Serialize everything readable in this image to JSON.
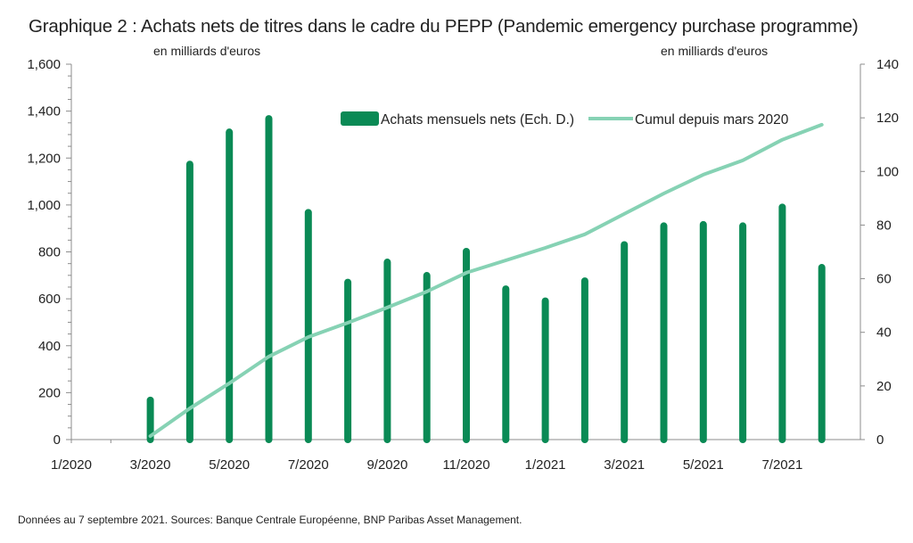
{
  "chart_data": {
    "type": "bar+line",
    "title": "Graphique 2 : Achats nets de titres dans le cadre du PEPP (Pandemic emergency purchase programme)",
    "ylabel_left": "en milliards d'euros",
    "ylabel_right": "en milliards d'euros",
    "x_months": [
      "1/2020",
      "2/2020",
      "3/2020",
      "4/2020",
      "5/2020",
      "6/2020",
      "7/2020",
      "8/2020",
      "9/2020",
      "10/2020",
      "11/2020",
      "12/2020",
      "1/2021",
      "2/2021",
      "3/2021",
      "4/2021",
      "5/2021",
      "6/2021",
      "7/2021",
      "8/2021"
    ],
    "x_tick_labels": [
      "1/2020",
      "3/2020",
      "5/2020",
      "7/2020",
      "9/2020",
      "11/2020",
      "1/2021",
      "3/2021",
      "5/2021",
      "7/2021"
    ],
    "ylim_left": [
      0,
      1600
    ],
    "ylim_right": [
      0,
      140
    ],
    "y_ticks_left": [
      "0",
      "200",
      "400",
      "600",
      "800",
      "1,000",
      "1,200",
      "1,400",
      "1,600"
    ],
    "y_ticks_right": [
      "0",
      "20",
      "40",
      "60",
      "80",
      "100",
      "120",
      "140"
    ],
    "grid": false,
    "legend_position": "top-right",
    "series": [
      {
        "name": "Achats mensuels nets (Ech. D.)",
        "type": "bar",
        "axis": "right",
        "color": "#0a8a55",
        "x": [
          "3/2020",
          "4/2020",
          "5/2020",
          "6/2020",
          "7/2020",
          "8/2020",
          "9/2020",
          "10/2020",
          "11/2020",
          "12/2020",
          "1/2021",
          "2/2021",
          "3/2021",
          "4/2021",
          "5/2021",
          "6/2021",
          "7/2021",
          "8/2021"
        ],
        "values": [
          16,
          104,
          116,
          121,
          86,
          60,
          67.5,
          62.5,
          71.5,
          57.5,
          53,
          60.5,
          74,
          81,
          81.5,
          81,
          88,
          65.5
        ]
      },
      {
        "name": "Cumul depuis mars 2020",
        "type": "line",
        "axis": "left",
        "color": "#86d2b4",
        "x": [
          "3/2020",
          "4/2020",
          "5/2020",
          "6/2020",
          "7/2020",
          "8/2020",
          "9/2020",
          "10/2020",
          "11/2020",
          "12/2020",
          "1/2021",
          "2/2021",
          "3/2021",
          "4/2021",
          "5/2021",
          "6/2021",
          "7/2021",
          "8/2021"
        ],
        "values": [
          15,
          133,
          240,
          354,
          437,
          498,
          563,
          631,
          711,
          764,
          817,
          875,
          962,
          1049,
          1129,
          1190,
          1278,
          1342
        ]
      }
    ]
  },
  "footnote": "Données au 7 septembre 2021. Sources: Banque Centrale Européenne, BNP Paribas Asset Management."
}
